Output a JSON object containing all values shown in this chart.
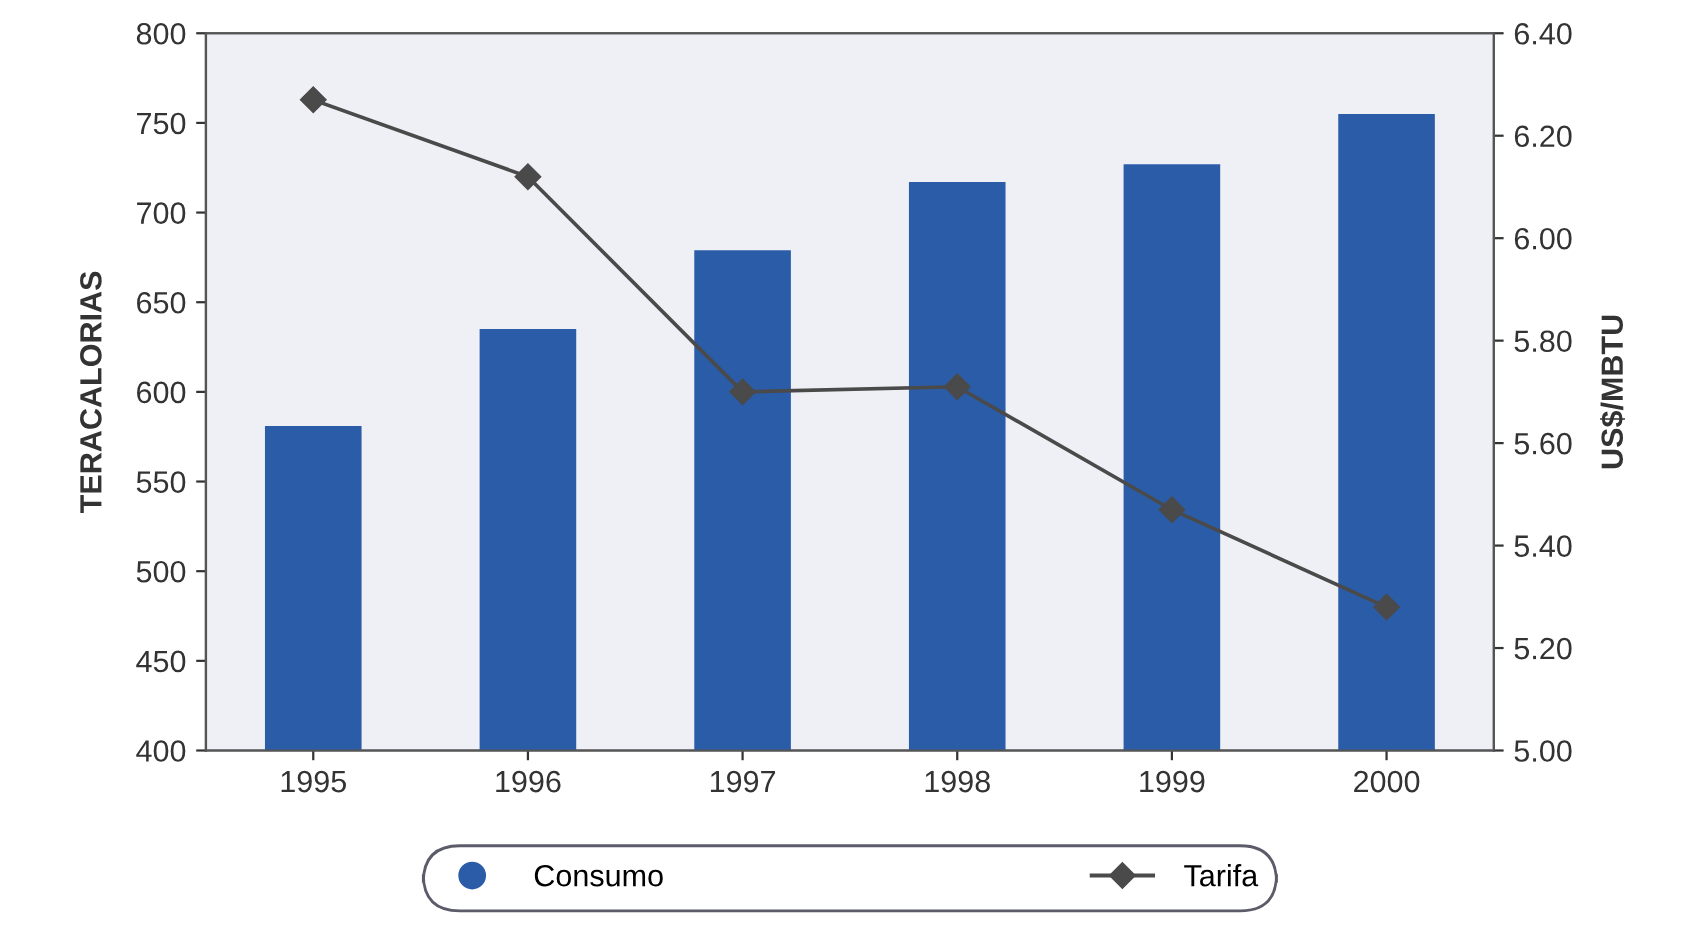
{
  "chart_data": {
    "type": "bar",
    "categories": [
      "1995",
      "1996",
      "1997",
      "1998",
      "1999",
      "2000"
    ],
    "ylabel": "TERACALORIAS",
    "y2label": "US$/MBTU",
    "series": [
      {
        "name": "Consumo",
        "color": "#2b5ca8",
        "values": [
          581,
          635,
          679,
          717,
          727,
          755
        ]
      },
      {
        "name": "Tarifa",
        "type": "line",
        "axis": "y2",
        "color": "#4a4a4a",
        "marker": "diamond",
        "values": [
          6.27,
          6.12,
          5.7,
          5.71,
          5.47,
          5.28
        ]
      }
    ],
    "ylim": [
      400,
      800
    ],
    "yticks": [
      400,
      450,
      500,
      550,
      600,
      650,
      700,
      750,
      800
    ],
    "y2lim": [
      5.0,
      6.4
    ],
    "y2ticks": [
      {
        "value": 5.0,
        "label": "5.00"
      },
      {
        "value": 5.2,
        "label": "5.20"
      },
      {
        "value": 5.4,
        "label": "5.40"
      },
      {
        "value": 5.6,
        "label": "5.60"
      },
      {
        "value": 5.8,
        "label": "5.80"
      },
      {
        "value": 6.0,
        "label": "6.00"
      },
      {
        "value": 6.2,
        "label": "6.20"
      },
      {
        "value": 6.4,
        "label": "6.40"
      }
    ],
    "legend": "bottom",
    "grid": false
  }
}
